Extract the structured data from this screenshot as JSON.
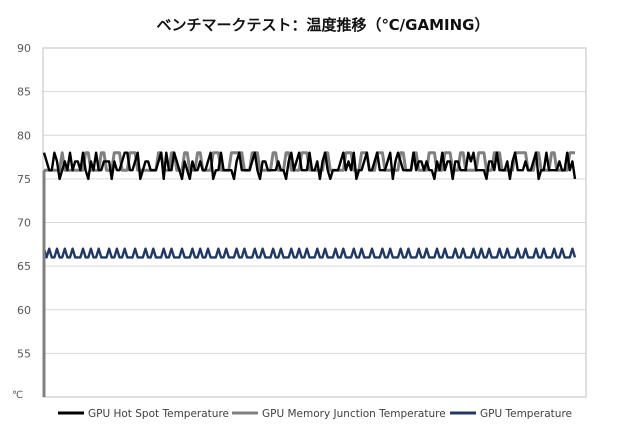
{
  "chart_data": {
    "type": "line",
    "title": "ベンチマークテスト：温度推移（℃/GAMING）",
    "y_unit_label": "℃",
    "ylim": [
      50,
      90
    ],
    "yticks": [
      55,
      60,
      65,
      70,
      75,
      80,
      85,
      90
    ],
    "grid": true,
    "legend_position": "bottom",
    "series": [
      {
        "name": "GPU Hot Spot Temperature",
        "color": "#000000",
        "values": [
          78,
          77,
          76,
          76,
          78,
          77,
          75,
          76,
          77,
          76,
          78,
          76,
          77,
          77,
          76,
          78,
          76,
          75,
          77,
          76,
          78,
          76,
          76,
          77,
          77,
          77,
          75,
          77,
          76,
          76,
          77,
          78,
          78,
          76,
          76,
          77,
          78,
          75,
          76,
          77,
          77,
          76,
          76,
          76,
          77,
          78,
          75,
          78,
          76,
          76,
          78,
          77,
          76,
          75,
          77,
          76,
          75,
          77,
          76,
          76,
          77,
          76,
          76,
          77,
          78,
          75,
          76,
          76,
          78,
          76,
          76,
          76,
          76,
          75,
          77,
          78,
          76,
          76,
          76,
          76,
          77,
          78,
          76,
          75,
          77,
          77,
          76,
          76,
          76,
          76,
          77,
          76,
          76,
          75,
          77,
          78,
          76,
          77,
          78,
          76,
          76,
          76,
          78,
          76,
          76,
          77,
          75,
          77,
          78,
          76,
          75,
          76,
          76,
          76,
          77,
          78,
          76,
          77,
          76,
          78,
          75,
          76,
          76,
          77,
          78,
          76,
          76,
          77,
          78,
          76,
          76,
          76,
          77,
          78,
          75,
          77,
          78,
          77,
          76,
          76,
          76,
          76,
          78,
          76,
          77,
          77,
          76,
          77,
          76,
          76,
          75,
          77,
          76,
          78,
          76,
          77,
          77,
          75,
          77,
          77,
          76,
          76,
          76,
          78,
          77,
          78,
          76,
          76,
          76,
          76,
          75,
          77,
          77,
          76,
          78,
          76,
          76,
          76,
          77,
          75,
          77,
          78,
          76,
          76,
          76,
          77,
          76,
          76,
          77,
          78,
          75,
          76,
          76,
          78,
          76,
          76,
          76,
          76,
          77,
          76,
          76,
          78,
          76,
          77,
          75
        ]
      },
      {
        "name": "GPU Memory Junction Temperature",
        "color": "#808080",
        "values": [
          76,
          76,
          76,
          76,
          76,
          76,
          76,
          78,
          76,
          76,
          76,
          76,
          76,
          76,
          76,
          76,
          78,
          78,
          76,
          76,
          76,
          76,
          78,
          78,
          76,
          76,
          76,
          78,
          78,
          78,
          76,
          76,
          76,
          78,
          78,
          78,
          76,
          76,
          76,
          76,
          76,
          76,
          76,
          76,
          78,
          78,
          76,
          76,
          76,
          78,
          78,
          76,
          76,
          76,
          78,
          78,
          76,
          76,
          76,
          78,
          78,
          76,
          76,
          76,
          76,
          78,
          78,
          78,
          76,
          76,
          76,
          76,
          78,
          78,
          78,
          78,
          78,
          76,
          76,
          76,
          78,
          78,
          78,
          76,
          76,
          76,
          76,
          76,
          78,
          78,
          76,
          76,
          76,
          78,
          78,
          76,
          76,
          76,
          76,
          78,
          78,
          78,
          76,
          76,
          76,
          76,
          76,
          76,
          78,
          78,
          76,
          76,
          76,
          76,
          76,
          76,
          78,
          78,
          78,
          76,
          76,
          76,
          78,
          78,
          78,
          76,
          76,
          76,
          78,
          78,
          78,
          76,
          76,
          76,
          76,
          76,
          76,
          78,
          78,
          76,
          76,
          76,
          78,
          78,
          76,
          76,
          76,
          76,
          78,
          78,
          78,
          76,
          76,
          76,
          78,
          78,
          78,
          76,
          76,
          76,
          78,
          78,
          76,
          76,
          76,
          76,
          76,
          78,
          78,
          78,
          76,
          76,
          76,
          78,
          78,
          78,
          76,
          76,
          76,
          76,
          76,
          78,
          78,
          78,
          78,
          78,
          76,
          76,
          76,
          78,
          78,
          76,
          76,
          76,
          76,
          78,
          78,
          76,
          76,
          76,
          76,
          76,
          78,
          78,
          78
        ]
      },
      {
        "name": "GPU Temperature",
        "color": "#1f3864",
        "values": [
          67,
          66,
          67,
          66,
          66,
          67,
          66,
          66,
          67,
          66,
          66,
          67,
          66,
          66,
          66,
          67,
          66,
          66,
          67,
          66,
          66,
          67,
          66,
          66,
          66,
          67,
          66,
          66,
          67,
          66,
          66,
          67,
          66,
          66,
          66,
          67,
          66,
          66,
          66,
          67,
          66,
          66,
          67,
          66,
          66,
          66,
          67,
          66,
          66,
          67,
          66,
          66,
          66,
          67,
          66,
          66,
          66,
          67,
          66,
          66,
          67,
          66,
          66,
          67,
          66,
          66,
          66,
          67,
          66,
          66,
          67,
          66,
          66,
          66,
          67,
          66,
          66,
          67,
          66,
          66,
          66,
          67,
          66,
          66,
          67,
          66,
          66,
          66,
          67,
          66,
          66,
          67,
          66,
          66,
          66,
          67,
          66,
          66,
          67,
          66,
          66,
          67,
          66,
          66,
          66,
          67,
          66,
          66,
          67,
          66,
          66,
          66,
          67,
          66,
          66,
          67,
          66,
          66,
          66,
          67,
          66,
          66,
          67,
          66,
          66,
          66,
          67,
          66,
          66,
          66,
          67,
          66,
          66,
          67,
          66,
          66,
          66,
          67,
          66,
          66,
          67,
          66,
          66,
          66,
          67,
          66,
          66,
          67,
          66,
          66,
          66,
          67,
          66,
          66,
          67,
          66,
          66,
          66,
          67,
          66,
          66,
          67,
          66,
          66,
          66,
          67,
          66,
          66,
          67,
          66,
          66,
          67,
          66,
          66,
          66,
          67,
          66,
          66,
          67,
          66,
          66,
          66,
          67,
          66,
          66,
          67,
          66,
          66,
          66,
          67,
          66,
          66,
          67,
          66,
          66,
          66,
          67,
          66,
          66,
          67,
          66,
          66,
          66,
          67,
          66
        ]
      }
    ]
  }
}
